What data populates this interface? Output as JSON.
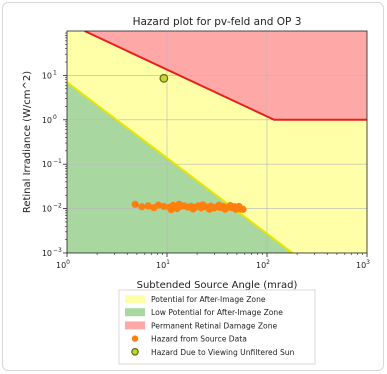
{
  "chart_data": {
    "type": "scatter",
    "title": "Hazard plot for pv-feld and OP 3",
    "xlabel": "Subtended Source Angle (mrad)",
    "ylabel": "Retinal Irradiance (W/cm^2)",
    "x_scale": "log",
    "y_scale": "log",
    "xlim": [
      1,
      1000
    ],
    "ylim": [
      0.001,
      100
    ],
    "x_ticks": [
      {
        "value": 1,
        "base": "10",
        "exp": "0"
      },
      {
        "value": 10,
        "base": "10",
        "exp": "1"
      },
      {
        "value": 100,
        "base": "10",
        "exp": "2"
      },
      {
        "value": 1000,
        "base": "10",
        "exp": "3"
      }
    ],
    "y_ticks": [
      {
        "value": 0.001,
        "base": "10",
        "exp": "−3"
      },
      {
        "value": 0.01,
        "base": "10",
        "exp": "−2"
      },
      {
        "value": 0.1,
        "base": "10",
        "exp": "−1"
      },
      {
        "value": 1,
        "base": "10",
        "exp": "0"
      },
      {
        "value": 10,
        "base": "10",
        "exp": "1"
      }
    ],
    "grid": true,
    "legend_position": "below",
    "regions": [
      {
        "name": "Potential for After-Image Zone",
        "color": "#ffffa8"
      },
      {
        "name": "Low Potential for After-Image Zone",
        "color": "#a8d8a0"
      },
      {
        "name": "Permanent Retinal Damage Zone",
        "color": "#ffa8a8"
      }
    ],
    "boundaries": [
      {
        "color": "#e8201a",
        "points": [
          [
            1.5,
            100
          ],
          [
            118,
            1
          ],
          [
            1000,
            1
          ]
        ]
      },
      {
        "color": "#e6e600",
        "points": [
          [
            1,
            7
          ],
          [
            180,
            0.001
          ]
        ]
      }
    ],
    "series": [
      {
        "name": "Hazard from Source Data",
        "color": "#ff7f0e",
        "marker": "circle",
        "points": [
          [
            4.8,
            0.0125
          ],
          [
            5.6,
            0.011
          ],
          [
            6.5,
            0.0115
          ],
          [
            7.4,
            0.0105
          ],
          [
            8.2,
            0.012
          ],
          [
            9.3,
            0.0112
          ],
          [
            10.6,
            0.0107
          ],
          [
            11.5,
            0.0118
          ],
          [
            12.6,
            0.01
          ],
          [
            13.6,
            0.0112
          ],
          [
            14.8,
            0.0115
          ],
          [
            16.2,
            0.0108
          ],
          [
            17.5,
            0.0112
          ],
          [
            19,
            0.0106
          ],
          [
            20.5,
            0.0115
          ],
          [
            22,
            0.0104
          ],
          [
            23.8,
            0.0112
          ],
          [
            25.6,
            0.0107
          ],
          [
            27.5,
            0.0113
          ],
          [
            29.6,
            0.0104
          ],
          [
            31.8,
            0.011
          ],
          [
            34,
            0.0106
          ],
          [
            36.5,
            0.0112
          ],
          [
            39,
            0.0103
          ],
          [
            41.5,
            0.0109
          ],
          [
            44.5,
            0.0105
          ],
          [
            47.5,
            0.011
          ],
          [
            50.5,
            0.0104
          ],
          [
            54,
            0.0098
          ],
          [
            57.5,
            0.0096
          ],
          [
            11,
            0.0095
          ],
          [
            13.2,
            0.0125
          ],
          [
            18.2,
            0.0098
          ],
          [
            22.8,
            0.0121
          ],
          [
            26.5,
            0.0097
          ],
          [
            33,
            0.0119
          ],
          [
            38,
            0.0097
          ],
          [
            43,
            0.0117
          ],
          [
            49,
            0.0096
          ],
          [
            52.5,
            0.0112
          ]
        ]
      },
      {
        "name": "Hazard Due to Viewing Unfiltered Sun",
        "color": "#c8d428",
        "edgecolor": "#556b1a",
        "marker": "circle",
        "points": [
          [
            9.3,
            8.6
          ]
        ]
      }
    ]
  }
}
